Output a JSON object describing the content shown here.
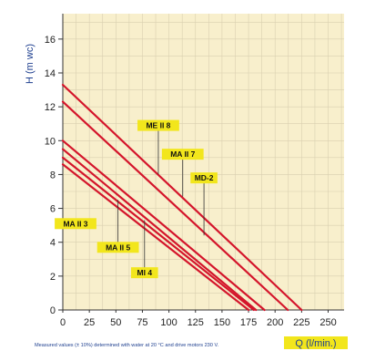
{
  "colors": {
    "plot_bg": "#f8efcc",
    "grid": "#d9cfb0",
    "curve": "#d4152b",
    "label_bg": "#f2e61c",
    "axis_text": "#1e3f8f",
    "q_label_bg": "#f2e61c"
  },
  "footnote": "Measured values (± 10%) determined with water at 20 °C and drive motors 230 V.",
  "chart_data": {
    "type": "line",
    "title": "",
    "xlabel": "Q (l/min.)",
    "ylabel": "H (m wc)",
    "xlim": [
      0,
      265
    ],
    "ylim": [
      0,
      17.5
    ],
    "xticks": [
      0,
      25,
      50,
      75,
      100,
      125,
      150,
      175,
      200,
      225,
      250
    ],
    "yticks": [
      0,
      2,
      4,
      6,
      8,
      10,
      12,
      14,
      16
    ],
    "grid": true,
    "legend": "none",
    "series": [
      {
        "name": "ME II 8",
        "x": [
          0,
          225
        ],
        "y": [
          13.3,
          0
        ],
        "label_at": {
          "x": 90,
          "y": 10.9
        },
        "leader_to": {
          "x": 90,
          "y": 8.0
        }
      },
      {
        "name": "MA II 7",
        "x": [
          0,
          212
        ],
        "y": [
          12.3,
          0
        ],
        "label_at": {
          "x": 113,
          "y": 9.2
        },
        "leader_to": {
          "x": 113,
          "y": 6.7
        }
      },
      {
        "name": "MD-2",
        "x": [
          0,
          190
        ],
        "y": [
          10.0,
          0
        ],
        "label_at": {
          "x": 133,
          "y": 7.8
        },
        "leader_to": {
          "x": 133,
          "y": 4.4
        }
      },
      {
        "name": "MA II 3",
        "x": [
          0,
          182
        ],
        "y": [
          9.5,
          0
        ],
        "label_at": {
          "x": 12,
          "y": 5.1
        }
      },
      {
        "name": "MA II 5",
        "x": [
          0,
          180
        ],
        "y": [
          9.0,
          0
        ],
        "label_at": {
          "x": 52,
          "y": 3.7
        },
        "leader_to": {
          "x": 52,
          "y": 6.5
        }
      },
      {
        "name": "MI 4",
        "x": [
          0,
          175
        ],
        "y": [
          8.6,
          0
        ],
        "label_at": {
          "x": 77,
          "y": 2.2
        },
        "leader_to": {
          "x": 77,
          "y": 5.3
        }
      }
    ]
  }
}
